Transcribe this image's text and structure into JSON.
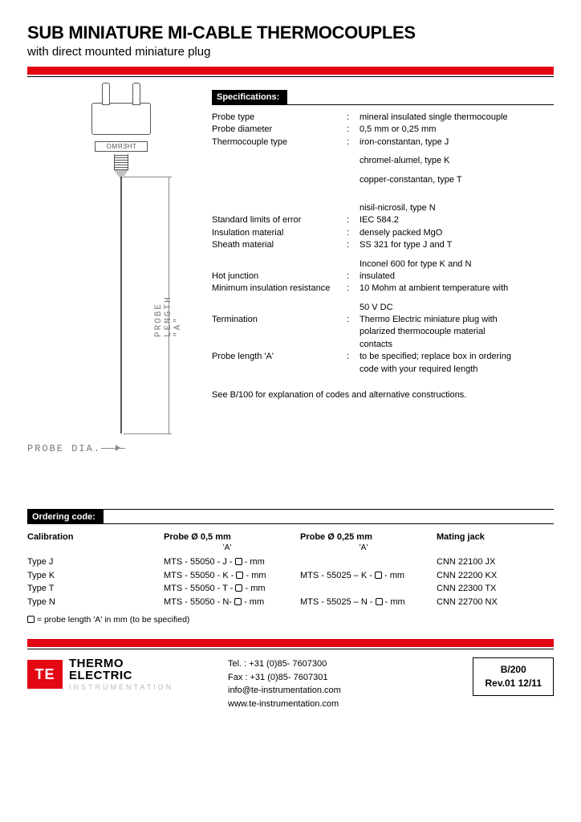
{
  "header": {
    "title": "SUB MINIATURE MI-CABLE THERMOCOUPLES",
    "subtitle": "with direct mounted miniature plug"
  },
  "colors": {
    "accent": "#e30613",
    "rule": "#000000",
    "diagram_line": "#888888",
    "text": "#000000"
  },
  "diagram": {
    "probe_length_label": "PROBE LENGTH \"A\"",
    "probe_dia_label": "PROBE DIA.",
    "plug_text": "THERMO"
  },
  "specs": {
    "header": "Specifications:",
    "rows": [
      {
        "label": "Probe type",
        "value": "mineral insulated single thermocouple"
      },
      {
        "label": "Probe diameter",
        "value": "0,5 mm or 0,25 mm"
      },
      {
        "label": "Thermocouple type",
        "value": "iron-constantan, type J"
      },
      {
        "label": "",
        "value": "chromel-alumel, type K",
        "gap": true
      },
      {
        "label": "",
        "value": "copper-constantan, type T",
        "gap": true
      },
      {
        "label": "",
        "value": "nisil-nicrosil, type N",
        "gaplg": true
      },
      {
        "label": "Standard limits of error",
        "value": "IEC 584.2"
      },
      {
        "label": "Insulation material",
        "value": "densely packed MgO"
      },
      {
        "label": "Sheath material",
        "value": "SS 321 for type J and T"
      },
      {
        "label": "",
        "value": "Inconel 600 for type K and N",
        "gap": true
      },
      {
        "label": "Hot junction",
        "value": "insulated"
      },
      {
        "label": "Minimum insulation resistance",
        "value": "10 Mohm at ambient temperature with"
      },
      {
        "label": "",
        "value": "50 V DC",
        "gap": true
      },
      {
        "label": "Termination",
        "value": "Thermo Electric miniature plug with"
      },
      {
        "label": "",
        "value": "polarized thermocouple material"
      },
      {
        "label": "",
        "value": "contacts"
      },
      {
        "label": "Probe length 'A'",
        "value": "to be specified; replace box in ordering"
      },
      {
        "label": "",
        "value": "code with your required length"
      }
    ],
    "note": "See B/100 for explanation of codes and alternative constructions."
  },
  "ordering": {
    "header": "Ordering code:",
    "col_headers": {
      "calibration": "Calibration",
      "probe05": "Probe Ø 0,5 mm",
      "probe025": "Probe Ø 0,25 mm",
      "mating": "Mating jack",
      "sub": "'A'"
    },
    "rows": [
      {
        "cal": "Type J",
        "p05": "MTS - 55050 - J - □ - mm",
        "p025": "",
        "jack": "CNN 22100 JX"
      },
      {
        "cal": "Type K",
        "p05": "MTS - 55050 - K - □ - mm",
        "p025": "MTS - 55025 – K - □ - mm",
        "jack": "CNN 22200 KX"
      },
      {
        "cal": "Type T",
        "p05": "MTS - 55050 - T - □ - mm",
        "p025": "",
        "jack": "CNN 22300 TX"
      },
      {
        "cal": "Type N",
        "p05": "MTS - 55050 - N- □ - mm",
        "p025": "MTS - 55025 – N - □ - mm",
        "jack": "CNN 22700 NX"
      }
    ],
    "legend": "□ = probe  length 'A' in mm (to be specified)"
  },
  "footer": {
    "logo_mark": "TE",
    "logo_line1": "THERMO",
    "logo_line2": "ELECTRIC",
    "logo_sub": "INSTRUMENTATION",
    "tel": "Tel. : +31 (0)85- 7607300",
    "fax": "Fax : +31 (0)85- 7607301",
    "email": "info@te-instrumentation.com",
    "web": "www.te-instrumentation.com",
    "doc_code": "B/200",
    "doc_rev": "Rev.01   12/11"
  }
}
